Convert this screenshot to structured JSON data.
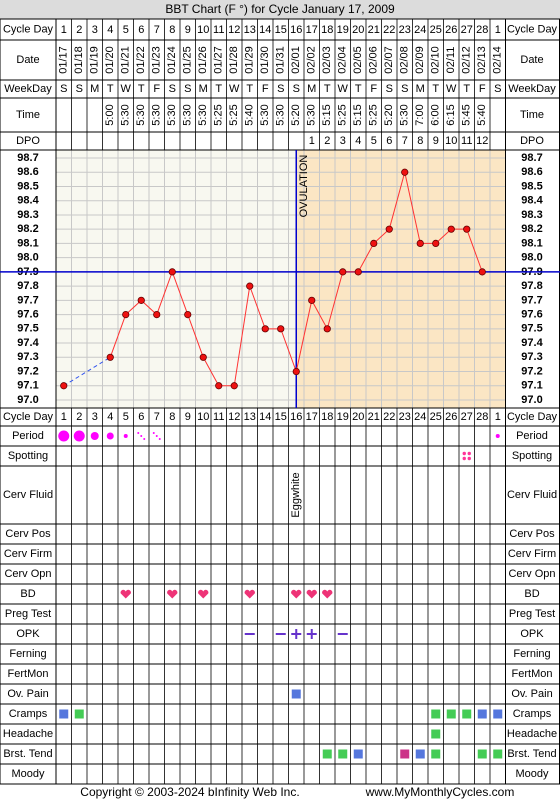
{
  "title": "BBT Chart (F °) for Cycle January 17, 2009",
  "row_labels": [
    "Cycle Day",
    "Date",
    "WeekDay",
    "Time",
    "DPO",
    "Cycle Day",
    "Period",
    "Spotting",
    "Cerv Fluid",
    "Cerv Pos",
    "Cerv Firm",
    "Cerv Opn",
    "BD",
    "Preg Test",
    "OPK",
    "Ferning",
    "FertMon",
    "Ov. Pain",
    "Cramps",
    "Headache",
    "Brst. Tend",
    "Moody"
  ],
  "cycle_days": [
    1,
    2,
    3,
    4,
    5,
    6,
    7,
    8,
    9,
    10,
    11,
    12,
    13,
    14,
    15,
    16,
    17,
    18,
    19,
    20,
    21,
    22,
    23,
    24,
    25,
    26,
    27,
    28,
    1
  ],
  "weekdays": [
    "S",
    "S",
    "M",
    "T",
    "W",
    "T",
    "F",
    "S",
    "S",
    "M",
    "T",
    "W",
    "T",
    "F",
    "S",
    "S",
    "M",
    "T",
    "W",
    "T",
    "F",
    "S",
    "S",
    "M",
    "T",
    "W",
    "T",
    "F",
    "S"
  ],
  "times": [
    null,
    null,
    null,
    "5:00",
    "5:30",
    "5:30",
    "5:30",
    "5:30",
    "5:30",
    "5:30",
    "5:25",
    "5:25",
    "5:40",
    "5:30",
    "5:30",
    "5:20",
    "5:30",
    "5:15",
    "5:25",
    "5:15",
    "5:25",
    "5:20",
    "5:30",
    "7:00",
    "6:00",
    "6:15",
    "5:45",
    "5:40",
    null
  ],
  "dpo": [
    null,
    null,
    null,
    null,
    null,
    null,
    null,
    null,
    null,
    null,
    null,
    null,
    null,
    null,
    null,
    null,
    1,
    2,
    3,
    4,
    5,
    6,
    7,
    8,
    9,
    10,
    11,
    12,
    null
  ],
  "cerv_fluid": [
    null,
    null,
    null,
    null,
    null,
    null,
    null,
    null,
    null,
    null,
    null,
    null,
    null,
    null,
    null,
    "Eggwhite",
    null,
    null,
    null,
    null,
    null,
    null,
    null,
    null,
    null,
    null,
    null,
    null,
    null
  ],
  "ovulation": {
    "label": "OVULATION",
    "date": "02/01"
  },
  "chart_data": {
    "type": "line",
    "categories": [
      "01/17",
      "01/18",
      "01/19",
      "01/20",
      "01/21",
      "01/22",
      "01/23",
      "01/24",
      "01/25",
      "01/26",
      "01/27",
      "01/28",
      "01/29",
      "01/30",
      "01/31",
      "02/01",
      "02/02",
      "02/03",
      "02/04",
      "02/05",
      "02/06",
      "02/07",
      "02/08",
      "02/09",
      "02/10",
      "02/11",
      "02/12",
      "02/13",
      "02/14"
    ],
    "values": [
      97.1,
      null,
      null,
      97.3,
      97.6,
      97.7,
      97.6,
      97.9,
      97.6,
      97.3,
      97.1,
      97.1,
      97.8,
      97.5,
      97.5,
      97.2,
      97.7,
      97.5,
      97.9,
      97.9,
      98.1,
      98.2,
      98.6,
      98.1,
      98.1,
      98.2,
      98.2,
      97.9,
      null
    ],
    "color": "#ff3333",
    "coverline": 97.9,
    "coverline_color": "#0000cc",
    "ylim": [
      97.0,
      98.7
    ],
    "yticks": [
      {
        "value": 97.0,
        "label": "97.0"
      },
      97.1,
      97.2,
      97.3,
      97.4,
      97.5,
      97.6,
      97.7,
      97.8,
      97.9,
      {
        "value": 98.0,
        "label": "98.0"
      },
      98.1,
      98.2,
      98.3,
      98.4,
      98.5,
      98.6,
      98.7
    ],
    "grid": true
  },
  "footer": {
    "copyright": "Copyright © 2003-2024 bInfinity Web Inc.",
    "website": "www.MyMonthlyCycles.com"
  }
}
